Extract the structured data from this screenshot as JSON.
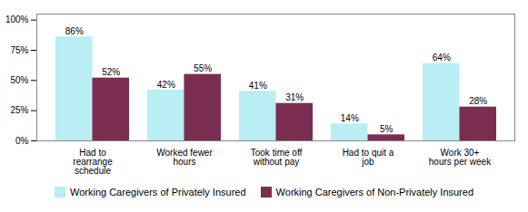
{
  "chart_data": {
    "type": "bar",
    "categories": [
      "Had to\nrearrange\nschedule",
      "Worked fewer\nhours",
      "Took time off\nwithout pay",
      "Had to quit a\njob",
      "Work 30+\nhours per week"
    ],
    "series": [
      {
        "name": "Working Caregivers of Privately Insured",
        "color": "#b8eef4",
        "values": [
          86,
          42,
          41,
          14,
          64
        ],
        "value_labels": [
          "86%",
          "42%",
          "41%",
          "14%",
          "64%"
        ]
      },
      {
        "name": "Working Caregivers of Non-Privately Insured",
        "color": "#7b2d52",
        "values": [
          52,
          55,
          31,
          5,
          28
        ],
        "value_labels": [
          "52%",
          "55%",
          "31%",
          "5%",
          "28%"
        ]
      }
    ],
    "ylim": [
      0,
      105
    ],
    "yticks": [
      {
        "value": 0,
        "label": "0%"
      },
      {
        "value": 25,
        "label": "25%"
      },
      {
        "value": 50,
        "label": "50%"
      },
      {
        "value": 75,
        "label": "75%"
      },
      {
        "value": 100,
        "label": "100%"
      }
    ],
    "grid": false,
    "legend": "bottom",
    "data_labels": true
  }
}
